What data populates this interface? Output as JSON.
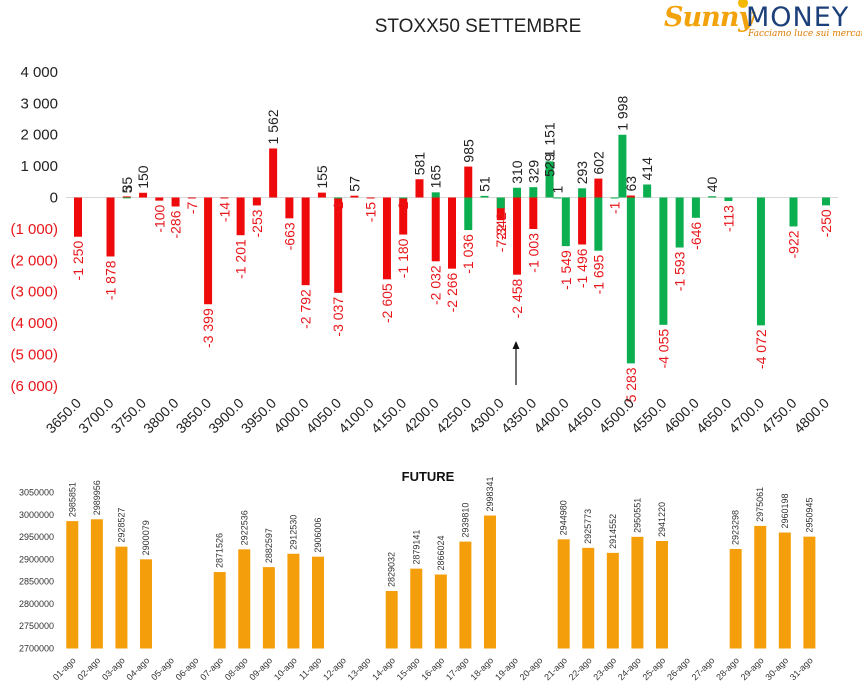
{
  "logo": {
    "brand_left": "Sunny",
    "brand_right": "MONEY",
    "tagline": "Facciamo luce sui mercati"
  },
  "colors": {
    "red": "#ee0a0a",
    "green": "#0caf50",
    "orange": "#f59e0b",
    "red_label": "#e8161b"
  },
  "chart_data": [
    {
      "type": "bar",
      "title": "STOXX50 SETTEMBRE",
      "x": [
        3650,
        3675,
        3700,
        3725,
        3750,
        3775,
        3800,
        3825,
        3850,
        3875,
        3900,
        3925,
        3950,
        3975,
        4000,
        4025,
        4050,
        4075,
        4100,
        4125,
        4150,
        4175,
        4200,
        4225,
        4250,
        4275,
        4300,
        4325,
        4350,
        4375,
        4400,
        4425,
        4450,
        4475,
        4500,
        4525,
        4550,
        4575,
        4600,
        4625,
        4650,
        4675,
        4700,
        4725,
        4750,
        4775,
        4800
      ],
      "xticks": [
        "3650.0",
        "3700.0",
        "3750.0",
        "3800.0",
        "3850.0",
        "3900.0",
        "3950.0",
        "4000.0",
        "4050.0",
        "4100.0",
        "4150.0",
        "4200.0",
        "4250.0",
        "4300.0",
        "4350.0",
        "4400.0",
        "4450.0",
        "4500.0",
        "4550.0",
        "4600.0",
        "4650.0",
        "4700.0",
        "4750.0",
        "4800.0"
      ],
      "yticks": [
        "4 000",
        "3 000",
        "2 000",
        "1 000",
        "0",
        "(1 000)",
        "(2 000)",
        "(3 000)",
        "(4 000)",
        "(5 000)",
        "(6 000)"
      ],
      "ylim": [
        -6000,
        4000
      ],
      "series": [
        {
          "color": "red",
          "values": [
            -1250,
            -1878,
            35,
            150,
            -100,
            -286,
            -7,
            -3399,
            -14,
            -1201,
            -253,
            1562,
            -663,
            -2792,
            155,
            -3037,
            57,
            -15,
            -2605,
            -1180,
            581,
            -2032,
            -2266,
            985,
            -722,
            -2458,
            -1003,
            529,
            -1496,
            602,
            63
          ],
          "positions": [
            3650,
            3700,
            3725,
            3750,
            3775,
            3800,
            3825,
            3850,
            3875,
            3900,
            3925,
            3950,
            3975,
            4000,
            4025,
            4050,
            4075,
            4100,
            4125,
            4150,
            4175,
            4200,
            4225,
            4250,
            4300,
            4325,
            4350,
            4375,
            4425,
            4450,
            4500
          ],
          "labels": [
            "-1 250",
            "-1 878",
            "35",
            "150",
            "-100",
            "-286",
            "-7",
            "-3 399",
            "-14",
            "-1 201",
            "-253",
            "1 562",
            "-663",
            "-2 792",
            "155",
            "-3 037",
            "57",
            "-15",
            "-2 605",
            "-1 180",
            "581",
            "-2 032",
            "-2 266",
            "985",
            "-722",
            "-2 458",
            "-1 003",
            "529",
            "-1 496",
            "602",
            "63"
          ]
        },
        {
          "color": "green",
          "values": [
            5,
            -1,
            -2,
            165,
            -1036,
            51,
            -342,
            310,
            329,
            1151,
            1,
            -1549,
            293,
            -1695,
            -1,
            1998,
            -5283,
            414,
            -4055,
            -1593,
            -646,
            40,
            -113,
            -4072,
            -922,
            -250
          ],
          "positions": [
            3725,
            4050,
            4150,
            4200,
            4250,
            4275,
            4300,
            4325,
            4350,
            4375,
            4387,
            4400,
            4425,
            4450,
            4475,
            4487,
            4500,
            4525,
            4550,
            4575,
            4600,
            4625,
            4650,
            4700,
            4750,
            4800
          ],
          "labels": [
            "5",
            "-1",
            "-2",
            "165",
            "-1 036",
            "51",
            "-342",
            "310",
            "329",
            "1 151",
            "1",
            "-1 549",
            "293",
            "-1 695",
            "-1",
            "1 998",
            "-5 283",
            "414",
            "-4 055",
            "-1 593",
            "-646",
            "40",
            "-113",
            "-4 072",
            "-922",
            "-250"
          ]
        }
      ],
      "annotation": "arrow"
    },
    {
      "type": "bar",
      "title": "FUTURE",
      "categories": [
        "01-ago",
        "02-ago",
        "03-ago",
        "04-ago",
        "05-ago",
        "06-ago",
        "07-ago",
        "08-ago",
        "09-ago",
        "10-ago",
        "11-ago",
        "12-ago",
        "13-ago",
        "14-ago",
        "15-ago",
        "16-ago",
        "17-ago",
        "18-ago",
        "19-ago",
        "20-ago",
        "21-ago",
        "22-ago",
        "23-ago",
        "24-ago",
        "25-ago",
        "26-ago",
        "27-ago",
        "28-ago",
        "29-ago",
        "30-ago",
        "31-ago"
      ],
      "values": [
        2985851,
        2989956,
        2928527,
        2900079,
        null,
        null,
        2871526,
        2922536,
        2882597,
        2912530,
        2906006,
        null,
        null,
        2829032,
        2879141,
        2866024,
        2939810,
        2998341,
        null,
        null,
        2944980,
        2925773,
        2914552,
        2950551,
        2941220,
        null,
        null,
        2923298,
        2975061,
        2960198,
        2950945
      ],
      "yticks": [
        "3050000",
        "3000000",
        "2950000",
        "2900000",
        "2850000",
        "2800000",
        "2750000",
        "2700000"
      ],
      "ylim": [
        2700000,
        3050000
      ],
      "color": "orange"
    }
  ]
}
